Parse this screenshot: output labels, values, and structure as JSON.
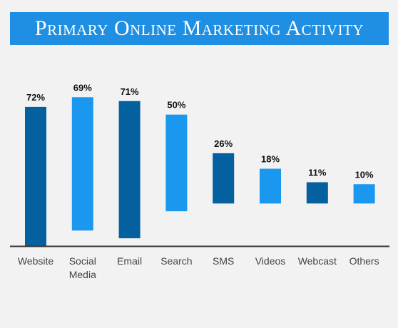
{
  "title": "Primary Online Marketing Activity",
  "colors": {
    "dark_bar": "#04609e",
    "light_bar": "#1a97ee",
    "title_bg": "#1e8fe3",
    "axis": "#333333"
  },
  "chart_data": {
    "type": "bar",
    "title": "Primary Online Marketing Activity",
    "categories": [
      {
        "lines": [
          "Website"
        ],
        "value": 72,
        "label": "72%",
        "color": "dark",
        "start": 0
      },
      {
        "lines": [
          "Social",
          "Media"
        ],
        "value": 69,
        "label": "69%",
        "color": "light",
        "start": 8
      },
      {
        "lines": [
          "Email"
        ],
        "value": 71,
        "label": "71%",
        "color": "dark",
        "start": 4
      },
      {
        "lines": [
          "Search"
        ],
        "value": 50,
        "label": "50%",
        "color": "light",
        "start": 18
      },
      {
        "lines": [
          "SMS"
        ],
        "value": 26,
        "label": "26%",
        "color": "dark",
        "start": 22
      },
      {
        "lines": [
          "Videos"
        ],
        "value": 18,
        "label": "18%",
        "color": "light",
        "start": 22
      },
      {
        "lines": [
          "Webcast"
        ],
        "value": 11,
        "label": "11%",
        "color": "dark",
        "start": 22
      },
      {
        "lines": [
          "Others"
        ],
        "value": 10,
        "label": "10%",
        "color": "light",
        "start": 22
      }
    ],
    "xlabel": "",
    "ylabel": "",
    "ylim": [
      0,
      72
    ]
  }
}
